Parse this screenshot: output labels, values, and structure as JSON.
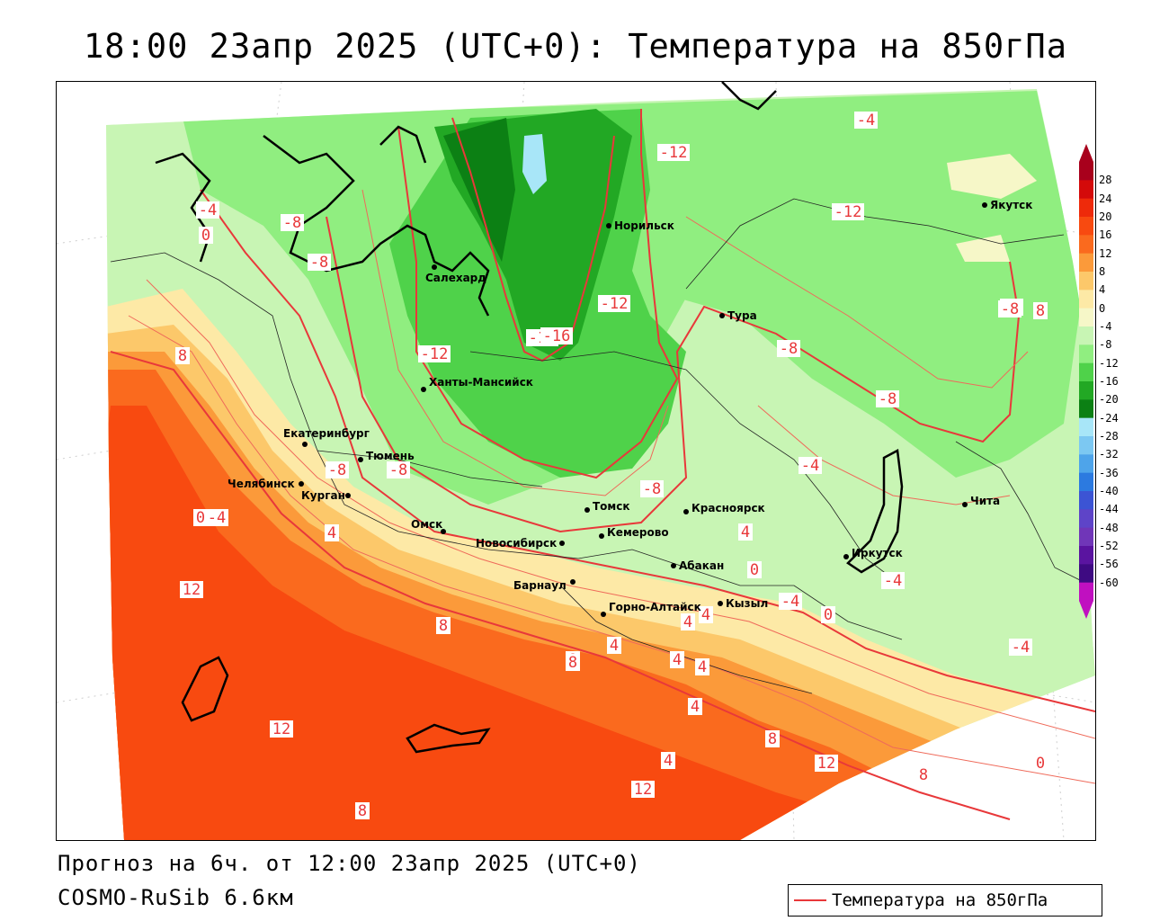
{
  "title": "18:00 23апр 2025 (UTC+0): Температура на 850гПа",
  "footer": {
    "forecast": "Прогноз на 6ч. от 12:00 23апр 2025 (UTC+0)",
    "model": "COSMO-RuSib 6.6км"
  },
  "legend": {
    "label": "Температура на 850гПа",
    "line_color": "#e8383a"
  },
  "colorbar": {
    "levels": [
      "28",
      "24",
      "20",
      "16",
      "12",
      "8",
      "4",
      "0",
      "-4",
      "-8",
      "-12",
      "-16",
      "-20",
      "-24",
      "-28",
      "-32",
      "-36",
      "-40",
      "-44",
      "-48",
      "-52",
      "-56",
      "-60"
    ],
    "colors": [
      "#a8001c",
      "#d40a0a",
      "#ee2a0a",
      "#f84a10",
      "#fa6a1e",
      "#fb9a3a",
      "#fcc86a",
      "#fde9a6",
      "#f6f7c8",
      "#c8f5b4",
      "#90ee80",
      "#4fd24a",
      "#22a824",
      "#0c8014",
      "#a8e6f8",
      "#7cc8f2",
      "#4ea4ea",
      "#2c7ae0",
      "#3c54d4",
      "#5e44c8",
      "#7036b8",
      "#5a14a0",
      "#3e0a82",
      "#c010c0"
    ]
  },
  "contour_labels": [
    "-4",
    "0",
    "-8",
    "-8",
    "-4",
    "-12",
    "-16",
    "-12",
    "-12",
    "-12",
    "-8",
    "-8",
    "-4",
    "-8",
    "-8",
    "-12",
    "-8",
    "-8",
    "-4",
    "0",
    "8",
    "4",
    "12",
    "8",
    "8",
    "4",
    "4",
    "4",
    "0",
    "4",
    "-4",
    "0",
    "4",
    "4",
    "8",
    "4",
    "8",
    "4",
    "12",
    "12",
    "8",
    "0",
    "-4",
    "-4",
    "8",
    "12",
    "8",
    "-8"
  ],
  "cities": [
    {
      "name": "Салехард"
    },
    {
      "name": "Норильск"
    },
    {
      "name": "Якутск"
    },
    {
      "name": "Тура"
    },
    {
      "name": "Ханты-Мансийск"
    },
    {
      "name": "Екатеринбург"
    },
    {
      "name": "Тюмень"
    },
    {
      "name": "Челябинск"
    },
    {
      "name": "Курган"
    },
    {
      "name": "Омск"
    },
    {
      "name": "Новосибирск"
    },
    {
      "name": "Томск"
    },
    {
      "name": "Кемерово"
    },
    {
      "name": "Красноярск"
    },
    {
      "name": "Абакан"
    },
    {
      "name": "Барнаул"
    },
    {
      "name": "Горно-Алтайск"
    },
    {
      "name": "Кызыл"
    },
    {
      "name": "Иркутск"
    },
    {
      "name": "Чита"
    }
  ]
}
